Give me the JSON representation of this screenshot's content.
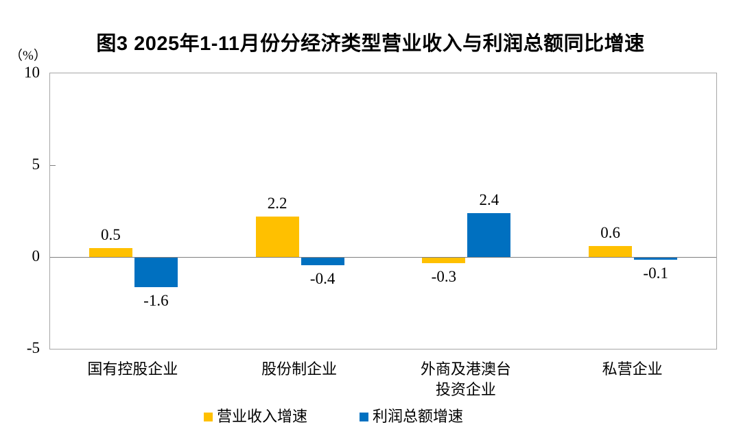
{
  "title": "图3  2025年1-11月份分经济类型营业收入与利润总额同比增速",
  "y_axis": {
    "unit_label": "（%）"
  },
  "chart_data": {
    "type": "bar",
    "title": "图3  2025年1-11月份分经济类型营业收入与利润总额同比增速",
    "categories": [
      "国有控股企业",
      "股份制企业",
      "外商及港澳台投资企业",
      "私营企业"
    ],
    "categories_display": [
      [
        "国有控股企业"
      ],
      [
        "股份制企业"
      ],
      [
        "外商及港澳台",
        "投资企业"
      ],
      [
        "私营企业"
      ]
    ],
    "series": [
      {
        "name": "营业收入增速",
        "color": "#FFC000",
        "values": [
          0.5,
          2.2,
          -0.3,
          0.6
        ]
      },
      {
        "name": "利润总额增速",
        "color": "#0070C0",
        "values": [
          -1.6,
          -0.4,
          2.4,
          -0.1
        ]
      }
    ],
    "xlabel": "",
    "ylabel": "（%）",
    "ylim": [
      -5,
      10
    ],
    "yticks": [
      10,
      5,
      0,
      -5
    ],
    "grid": "zero-line-only",
    "legend_position": "bottom",
    "value_labels": "shown"
  }
}
